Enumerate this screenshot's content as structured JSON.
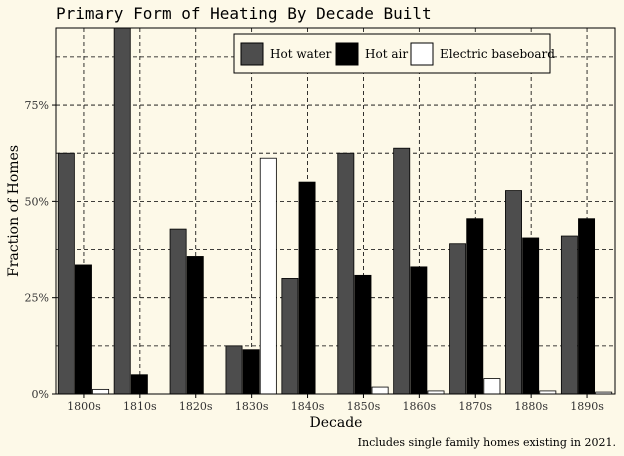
{
  "chart_data": {
    "type": "bar",
    "title": "Primary Form of Heating By Decade Built",
    "xlabel": "Decade",
    "ylabel": "Fraction of Homes",
    "caption": "Includes single family homes existing in 2021.",
    "categories": [
      "1800s",
      "1810s",
      "1820s",
      "1830s",
      "1840s",
      "1850s",
      "1860s",
      "1870s",
      "1880s",
      "1890s"
    ],
    "series": [
      {
        "name": "Hot water",
        "color": "#4d4d4d",
        "values": [
          0.625,
          0.95,
          0.428,
          0.125,
          0.3,
          0.625,
          0.638,
          0.39,
          0.528,
          0.41
        ]
      },
      {
        "name": "Hot air",
        "color": "#000000",
        "values": [
          0.335,
          0.05,
          0.357,
          0.115,
          0.55,
          0.308,
          0.33,
          0.455,
          0.405,
          0.455
        ]
      },
      {
        "name": "Electric baseboard",
        "color": "#ffffff",
        "values": [
          0.012,
          0.0,
          0.0,
          0.612,
          0.0,
          0.018,
          0.008,
          0.04,
          0.008,
          0.005
        ]
      }
    ],
    "ylim": [
      0,
      0.95
    ],
    "yticks": [
      0,
      0.25,
      0.5,
      0.75
    ],
    "ytick_labels": [
      "0%",
      "25%",
      "50%",
      "75%"
    ],
    "grid": true,
    "legend_position": "top-right",
    "background": "#fdf9e8"
  }
}
